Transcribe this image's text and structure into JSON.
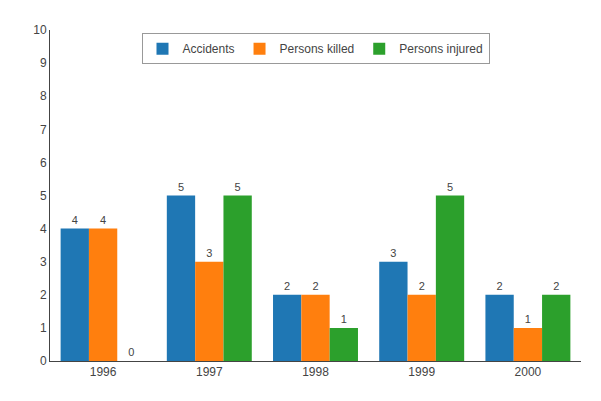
{
  "chart_data": {
    "type": "bar",
    "categories": [
      "1996",
      "1997",
      "1998",
      "1999",
      "2000"
    ],
    "series": [
      {
        "name": "Accidents",
        "values": [
          4,
          5,
          2,
          3,
          2
        ]
      },
      {
        "name": "Persons killed",
        "values": [
          4,
          3,
          2,
          2,
          1
        ]
      },
      {
        "name": "Persons injured",
        "values": [
          0,
          5,
          1,
          5,
          2
        ]
      }
    ],
    "ylim": [
      0,
      10
    ],
    "yticks": [
      0,
      1,
      2,
      3,
      4,
      5,
      6,
      7,
      8,
      9,
      10
    ],
    "grid": false,
    "legend": "top",
    "data_labels": true
  }
}
